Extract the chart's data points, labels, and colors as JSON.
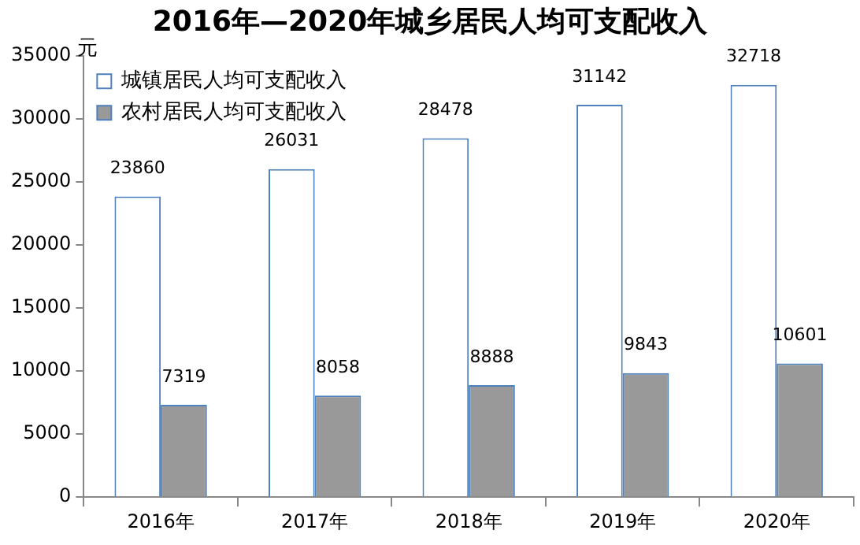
{
  "chart_data": {
    "type": "bar",
    "title": "2016年—2020年城乡居民人均可支配收入",
    "ylabel": "元",
    "categories": [
      "2016年",
      "2017年",
      "2018年",
      "2019年",
      "2020年"
    ],
    "series": [
      {
        "name": "城镇居民人均可支配收入",
        "color": "#ffffff",
        "values": [
          23860,
          26031,
          28478,
          31142,
          32718
        ]
      },
      {
        "name": "农村居民人均可支配收入",
        "color": "#999999",
        "values": [
          7319,
          8058,
          8888,
          9843,
          10601
        ]
      }
    ],
    "ylim": [
      0,
      35000
    ],
    "yticks": [
      0,
      5000,
      10000,
      15000,
      20000,
      25000,
      30000,
      35000
    ],
    "grid": false,
    "legend": "top left",
    "data_labels": true
  }
}
